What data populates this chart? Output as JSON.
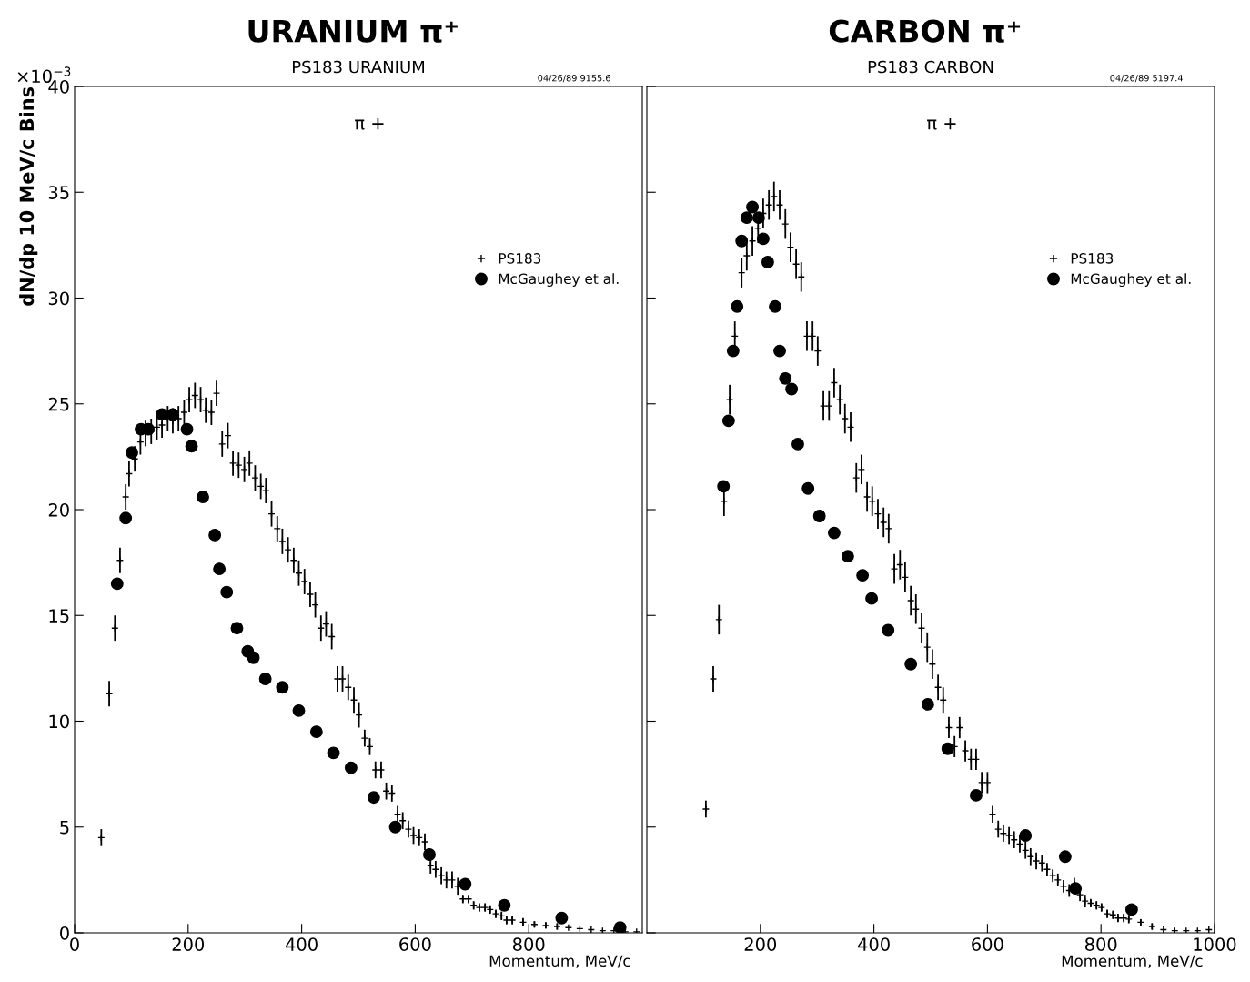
{
  "chart_data": [
    {
      "type": "scatter",
      "title": "URANIUM π⁺",
      "subtitle": "PS183 URANIUM",
      "xlabel": "Momentum, MeV/c",
      "ylabel": "dN/dp 10 MeV/c Bins",
      "annotations": [
        "04/26/89 9155.6",
        "π +",
        "×10$^{−3}$"
      ],
      "xlim": [
        0,
        1000
      ],
      "xticks": [
        0,
        200,
        400,
        600,
        800
      ],
      "ylim": [
        0,
        40
      ],
      "yticks": [
        0,
        5,
        10,
        15,
        20,
        25,
        30,
        35,
        40
      ],
      "grid": false,
      "legend": "top right",
      "series": [
        {
          "name": "PS183",
          "color": "#000000",
          "marker": "cross",
          "x": [
            47,
            61,
            71,
            80,
            90,
            96,
            106,
            116,
            125,
            135,
            145,
            154,
            164,
            173,
            183,
            193,
            202,
            212,
            222,
            231,
            241,
            250,
            260,
            270,
            279,
            289,
            299,
            308,
            318,
            328,
            337,
            347,
            357,
            366,
            376,
            386,
            395,
            405,
            415,
            424,
            434,
            443,
            453,
            463,
            472,
            482,
            492,
            501,
            511,
            520,
            530,
            540,
            549,
            559,
            569,
            578,
            588,
            597,
            607,
            617,
            627,
            636,
            646,
            655,
            665,
            675,
            684,
            694,
            703,
            713,
            723,
            732,
            742,
            752,
            761,
            771,
            790,
            810,
            830,
            850,
            870,
            890,
            910,
            930,
            950,
            970,
            990
          ],
          "values": [
            4.5,
            11.3,
            14.4,
            17.6,
            20.6,
            21.7,
            22.4,
            23.2,
            23.6,
            23.7,
            23.9,
            24.0,
            24.3,
            24.2,
            24.3,
            24.6,
            25.2,
            25.4,
            25.2,
            24.7,
            24.6,
            25.5,
            23.1,
            23.5,
            22.2,
            22.1,
            21.9,
            22.2,
            21.5,
            21.1,
            20.9,
            19.8,
            19.1,
            18.5,
            18.1,
            17.6,
            17.0,
            16.6,
            16.0,
            15.5,
            14.4,
            14.6,
            14.0,
            12.0,
            12.0,
            11.6,
            11.0,
            10.3,
            9.2,
            8.8,
            7.7,
            7.7,
            6.7,
            6.6,
            5.6,
            5.3,
            4.9,
            4.6,
            4.5,
            4.3,
            3.2,
            3.0,
            2.7,
            2.5,
            2.5,
            2.2,
            1.6,
            1.6,
            1.3,
            1.2,
            1.2,
            1.1,
            0.9,
            0.8,
            0.6,
            0.6,
            0.5,
            0.4,
            0.35,
            0.3,
            0.25,
            0.2,
            0.15,
            0.1,
            0.1,
            0.05,
            0.05
          ],
          "errors": [
            0.4,
            0.6,
            0.6,
            0.6,
            0.6,
            0.6,
            0.6,
            0.6,
            0.6,
            0.6,
            0.6,
            0.6,
            0.6,
            0.6,
            0.6,
            0.6,
            0.6,
            0.6,
            0.6,
            0.6,
            0.6,
            0.6,
            0.6,
            0.6,
            0.6,
            0.6,
            0.6,
            0.6,
            0.6,
            0.6,
            0.6,
            0.6,
            0.6,
            0.6,
            0.6,
            0.6,
            0.6,
            0.6,
            0.6,
            0.6,
            0.6,
            0.6,
            0.6,
            0.6,
            0.6,
            0.6,
            0.6,
            0.6,
            0.4,
            0.4,
            0.4,
            0.4,
            0.4,
            0.4,
            0.4,
            0.4,
            0.4,
            0.4,
            0.4,
            0.4,
            0.4,
            0.4,
            0.4,
            0.4,
            0.4,
            0.4,
            0.2,
            0.2,
            0.2,
            0.2,
            0.2,
            0.2,
            0.2,
            0.2,
            0.2,
            0.2,
            0.2,
            0.15,
            0.15,
            0.15,
            null,
            null,
            null,
            null,
            null,
            null,
            null
          ]
        },
        {
          "name": "McGaughey et al.",
          "color": "#000000",
          "marker": "circle",
          "x": [
            75,
            90,
            101,
            117,
            130,
            154,
            173,
            198,
            206,
            226,
            247,
            255,
            268,
            286,
            305,
            315,
            336,
            366,
            395,
            426,
            456,
            487,
            527,
            565,
            625,
            688,
            757,
            858,
            961
          ],
          "values": [
            16.5,
            19.6,
            22.7,
            23.8,
            23.8,
            24.5,
            24.5,
            23.8,
            23.0,
            20.6,
            18.8,
            17.2,
            16.1,
            14.4,
            13.3,
            13.0,
            12.0,
            11.6,
            10.5,
            9.5,
            8.5,
            7.8,
            6.4,
            5.0,
            3.7,
            2.3,
            1.3,
            0.7,
            0.25
          ]
        }
      ]
    },
    {
      "type": "scatter",
      "title": "CARBON π⁺",
      "subtitle": "PS183 CARBON",
      "xlabel": "Momentum, MeV/c",
      "annotations": [
        "04/26/89 5197.4",
        "π +"
      ],
      "xlim": [
        0,
        1000
      ],
      "xticks": [
        200,
        400,
        600,
        800,
        1000
      ],
      "ylim": [
        0,
        40
      ],
      "yticks": [
        0,
        5,
        10,
        15,
        20,
        25,
        30,
        35,
        40
      ],
      "tick_labels": "x",
      "grid": false,
      "legend": "top right",
      "series": [
        {
          "name": "PS183",
          "color": "#000000",
          "marker": "cross",
          "x": [
            104,
            117,
            127,
            136,
            146,
            155,
            167,
            176,
            186,
            196,
            205,
            215,
            224,
            234,
            244,
            253,
            263,
            272,
            282,
            292,
            301,
            311,
            321,
            330,
            340,
            349,
            359,
            369,
            378,
            388,
            397,
            407,
            417,
            426,
            436,
            446,
            455,
            465,
            474,
            484,
            494,
            503,
            513,
            522,
            532,
            542,
            551,
            561,
            571,
            580,
            590,
            600,
            609,
            619,
            628,
            638,
            647,
            657,
            667,
            676,
            686,
            696,
            705,
            715,
            724,
            734,
            744,
            753,
            763,
            772,
            782,
            792,
            801,
            811,
            821,
            830,
            840,
            849,
            870,
            890,
            910,
            930,
            950,
            970,
            990
          ],
          "values": [
            5.85,
            12.0,
            14.8,
            20.4,
            25.2,
            28.2,
            31.2,
            32.0,
            32.7,
            33.3,
            34.0,
            34.4,
            34.8,
            34.4,
            33.5,
            32.4,
            31.6,
            31.0,
            28.2,
            28.2,
            27.5,
            24.9,
            24.9,
            26.0,
            25.2,
            24.3,
            23.9,
            21.5,
            21.9,
            20.6,
            20.4,
            19.8,
            19.4,
            19.1,
            17.2,
            17.4,
            16.8,
            15.7,
            15.3,
            14.4,
            13.5,
            12.7,
            11.6,
            11.0,
            9.7,
            8.8,
            9.7,
            8.6,
            8.2,
            8.2,
            7.1,
            7.1,
            5.6,
            4.9,
            4.7,
            4.6,
            4.4,
            4.2,
            3.9,
            3.6,
            3.4,
            3.3,
            3.0,
            2.7,
            2.5,
            2.2,
            2.0,
            2.3,
            1.8,
            1.5,
            1.4,
            1.3,
            1.2,
            0.9,
            0.85,
            0.7,
            0.7,
            0.65,
            0.5,
            0.3,
            0.15,
            0.1,
            0.1,
            0.1,
            0.15
          ],
          "errors": [
            0.4,
            0.6,
            0.7,
            0.7,
            0.7,
            0.7,
            0.7,
            0.7,
            0.7,
            0.7,
            0.7,
            0.7,
            0.7,
            0.7,
            0.7,
            0.7,
            0.7,
            0.7,
            0.7,
            0.7,
            0.7,
            0.7,
            0.7,
            0.7,
            0.7,
            0.7,
            0.7,
            0.7,
            0.7,
            0.7,
            0.7,
            0.7,
            0.7,
            0.7,
            0.7,
            0.7,
            0.7,
            0.7,
            0.7,
            0.7,
            0.7,
            0.7,
            0.6,
            0.6,
            0.5,
            0.5,
            0.5,
            0.5,
            0.5,
            0.5,
            0.5,
            0.5,
            0.4,
            0.4,
            0.4,
            0.4,
            0.4,
            0.4,
            0.4,
            0.4,
            0.4,
            0.4,
            0.3,
            0.3,
            0.3,
            0.3,
            0.3,
            0.3,
            0.3,
            0.3,
            0.2,
            0.2,
            0.2,
            0.2,
            0.2,
            0.2,
            0.2,
            0.2,
            0.15,
            0.15,
            null,
            null,
            null,
            null,
            null
          ]
        },
        {
          "name": "McGaughey et al.",
          "color": "#000000",
          "marker": "circle",
          "x": [
            135,
            144,
            152,
            159,
            167,
            176,
            186,
            197,
            205,
            213,
            226,
            234,
            244,
            255,
            266,
            284,
            304,
            330,
            354,
            380,
            396,
            425,
            465,
            495,
            530,
            580,
            667,
            737,
            755,
            854
          ],
          "values": [
            21.1,
            24.2,
            27.5,
            29.6,
            32.7,
            33.8,
            34.3,
            33.8,
            32.8,
            31.7,
            29.6,
            27.5,
            26.2,
            25.7,
            23.1,
            21.0,
            19.7,
            18.9,
            17.8,
            16.9,
            15.8,
            14.3,
            12.7,
            10.8,
            8.7,
            6.5,
            4.6,
            3.6,
            2.1,
            1.1
          ]
        }
      ]
    }
  ]
}
